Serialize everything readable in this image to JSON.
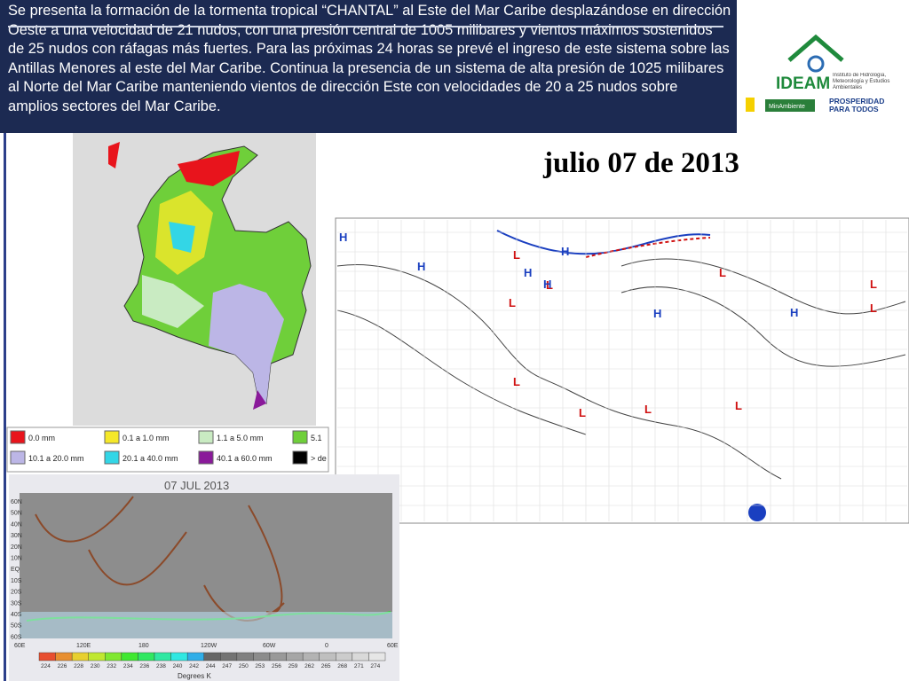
{
  "header": {
    "paragraph": "Se presenta la formación de la tormenta tropical “CHANTAL” al Este del Mar Caribe desplazándose en dirección Oeste a una velocidad de 21 nudos, con una presión central de 1005 milibares y vientos máximos sostenidos de 25 nudos con ráfagas más fuertes. Para las próximas 24 horas se prevé el ingreso de este sistema sobre las Antillas Menores al este del Mar Caribe. Continua la presencia de un sistema de alta presión de 1025 milibares al Norte del Mar Caribe manteniendo vientos de dirección Este con velocidades de 20 a  25 nudos sobre amplios sectores del Mar Caribe."
  },
  "date": "julio 07 de 2013",
  "logo": {
    "name": "IDEAM",
    "institute": "Instituto de Hidrología, Meteorología y Estudios Ambientales",
    "ministry": "MinAmbiente",
    "slogan": "PROSPERIDAD PARA TODOS"
  },
  "precipitation_legend": [
    {
      "label": "0.0 mm",
      "color": "#e8141c"
    },
    {
      "label": "0.1 a 1.0 mm",
      "color": "#f5e829"
    },
    {
      "label": "1.1 a 5.0 mm",
      "color": "#c9ebc2"
    },
    {
      "label": "5.1",
      "color": "#6fcf3a"
    },
    {
      "label": "10.1 a 20.0 mm",
      "color": "#bcb6e6"
    },
    {
      "label": "20.1 a 40.0 mm",
      "color": "#33d6e6"
    },
    {
      "label": "40.1 a 60.0 mm",
      "color": "#8a1a9a"
    },
    {
      "label": "> de",
      "color": "#000000"
    }
  ],
  "satellite": {
    "title": "07 JUL 2013",
    "lat_labels": [
      "60N",
      "50N",
      "40N",
      "30N",
      "20N",
      "10N",
      "EQ",
      "10S",
      "20S",
      "30S",
      "40S",
      "50S",
      "60S"
    ],
    "lon_labels": [
      "60E",
      "120E",
      "180",
      "120W",
      "60W",
      "0",
      "60E"
    ],
    "scale": [
      "224",
      "226",
      "228",
      "230",
      "232",
      "234",
      "236",
      "238",
      "240",
      "242",
      "244",
      "247",
      "250",
      "253",
      "256",
      "259",
      "262",
      "265",
      "268",
      "271",
      "274"
    ],
    "unit": "Degrees K"
  },
  "surface_map": {
    "centers": [
      "H",
      "L",
      "H",
      "L",
      "H",
      "L",
      "L",
      "H",
      "H",
      "L",
      "L",
      "L",
      "L",
      "H",
      "L",
      "L",
      "H"
    ]
  }
}
